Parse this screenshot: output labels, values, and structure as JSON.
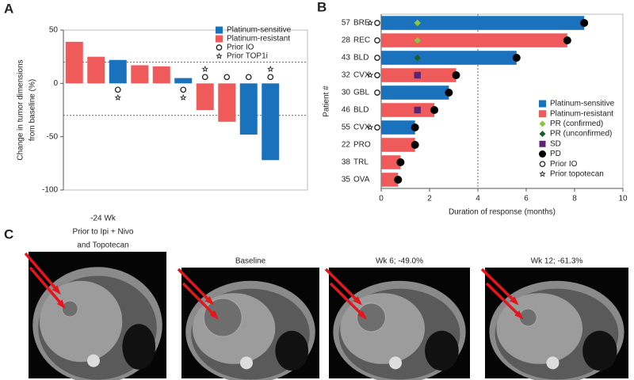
{
  "panel_labels": [
    "A",
    "B",
    "C"
  ],
  "chart_data": [
    {
      "type": "waterfall",
      "ylabel": [
        "Change in tumor dimensions",
        "from baseline (%)"
      ],
      "categories": [
        null,
        null,
        null,
        null,
        null,
        null,
        null,
        null,
        null,
        null
      ],
      "series": [
        {
          "name": "Platinum-sensitive",
          "color": "#1a72bd",
          "values": [
            null,
            null,
            22,
            null,
            null,
            5,
            null,
            null,
            -48,
            -72
          ]
        },
        {
          "name": "Platinum-resistant",
          "color": "#ef5b5b",
          "values": [
            39,
            25,
            null,
            17,
            16,
            null,
            -25,
            -36,
            null,
            null
          ]
        }
      ],
      "flags": [
        {
          "name": "Prior IO",
          "shape": "circle",
          "values": [
            false,
            false,
            true,
            false,
            false,
            true,
            true,
            true,
            true,
            true
          ]
        },
        {
          "name": "Prior TOP1i",
          "shape": "star",
          "values": [
            false,
            false,
            true,
            false,
            false,
            true,
            true,
            false,
            false,
            true
          ]
        }
      ],
      "reference_lines": [
        20,
        -30
      ],
      "ylim": [
        -100,
        50
      ],
      "yticks": [
        50,
        0,
        -50,
        -100
      ]
    },
    {
      "type": "swimmer",
      "xlabel": "Duration of response (months)",
      "ylabel": "Patient #",
      "categories": [
        "57",
        "28",
        "43",
        "32",
        "30",
        "46",
        "55",
        "22",
        "38",
        "35"
      ],
      "tumor_types": [
        "BRE",
        "REC",
        "BLD",
        "CVX",
        "GBL",
        "BLD",
        "CVX",
        "PRO",
        "TRL",
        "OVA"
      ],
      "series": [
        {
          "name": "Platinum-sensitive",
          "color": "#1a72bd",
          "values": [
            8.4,
            null,
            5.6,
            null,
            2.8,
            null,
            1.4,
            null,
            null,
            null
          ]
        },
        {
          "name": "Platinum-resistant",
          "color": "#ef5b5b",
          "values": [
            null,
            7.7,
            null,
            3.1,
            null,
            2.2,
            null,
            1.4,
            0.8,
            0.7
          ]
        }
      ],
      "markers": [
        {
          "name": "PR (confirmed)",
          "shape": "diamond",
          "color": "#8cc63f",
          "values": [
            1.5,
            1.5,
            null,
            null,
            null,
            null,
            null,
            null,
            null,
            null
          ]
        },
        {
          "name": "PR (unconfirmed)",
          "shape": "diamond",
          "color": "#1d5d2a",
          "values": [
            null,
            null,
            1.5,
            null,
            null,
            null,
            null,
            null,
            null,
            null
          ]
        },
        {
          "name": "SD",
          "shape": "square",
          "color": "#5b2474",
          "values": [
            null,
            null,
            null,
            1.5,
            null,
            1.5,
            null,
            null,
            null,
            null
          ]
        },
        {
          "name": "PD",
          "shape": "circle",
          "color": "#000000",
          "values": [
            8.4,
            7.7,
            5.6,
            3.1,
            2.8,
            2.2,
            1.4,
            1.4,
            0.8,
            0.7
          ]
        }
      ],
      "flags": [
        {
          "name": "Prior IO",
          "shape": "circle",
          "values": [
            true,
            true,
            true,
            true,
            true,
            false,
            true,
            false,
            false,
            false
          ]
        },
        {
          "name": "Prior topotecan",
          "shape": "star",
          "values": [
            true,
            false,
            false,
            true,
            false,
            false,
            true,
            false,
            false,
            false
          ]
        }
      ],
      "reference_lines": [
        4
      ],
      "xlim": [
        0,
        10
      ],
      "xticks": [
        0,
        2,
        4,
        6,
        8,
        10
      ]
    }
  ],
  "images": [
    {
      "caption": [
        "-24 Wk",
        "Prior to Ipi + Nivo",
        "and Topotecan"
      ]
    },
    {
      "caption": [
        "Baseline"
      ]
    },
    {
      "caption": [
        "Wk 6; -49.0%"
      ]
    },
    {
      "caption": [
        "Wk 12; -61.3%"
      ]
    }
  ]
}
